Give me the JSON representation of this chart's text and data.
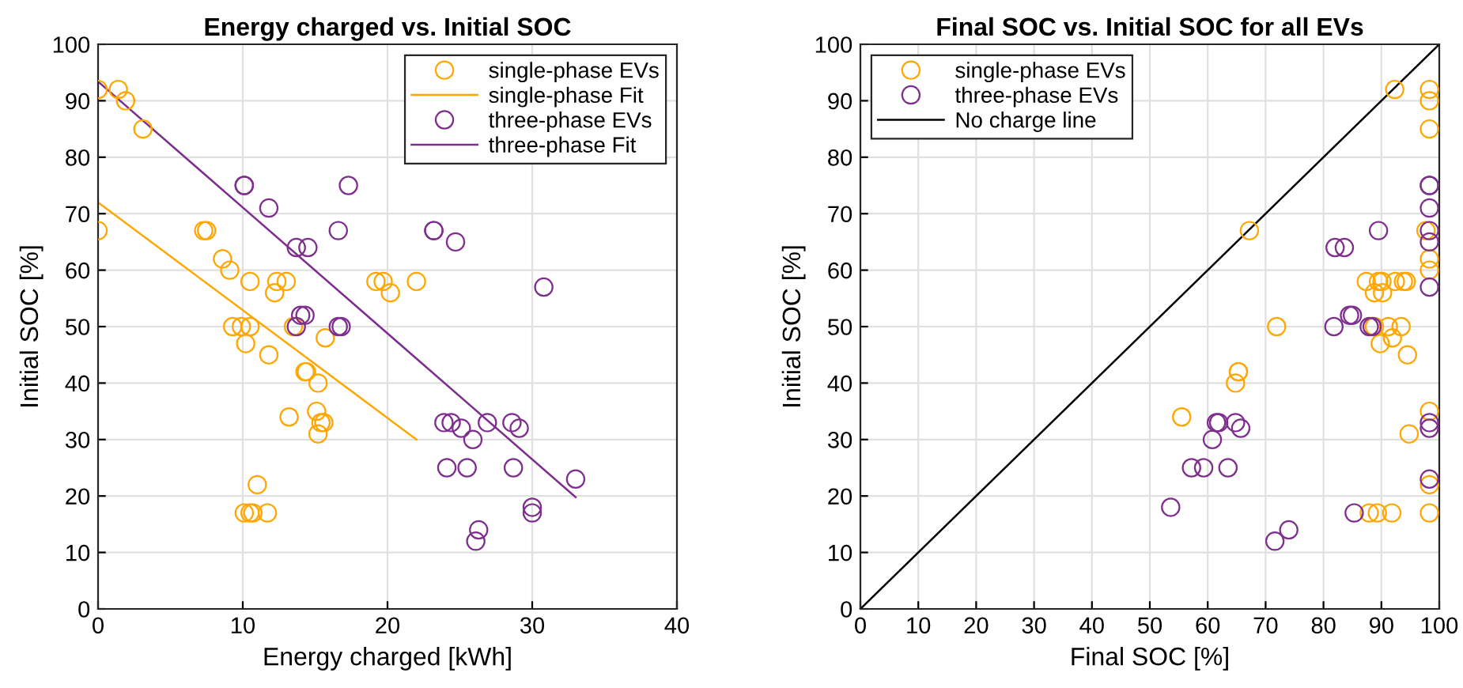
{
  "chart_data": [
    {
      "type": "scatter",
      "title": "Energy charged vs. Initial SOC",
      "xlabel": "Energy charged [kWh]",
      "ylabel": "Initial SOC [%]",
      "xlim": [
        0,
        40
      ],
      "ylim": [
        0,
        100
      ],
      "xticks": [
        0,
        10,
        20,
        30,
        40
      ],
      "yticks": [
        0,
        10,
        20,
        30,
        40,
        50,
        60,
        70,
        80,
        90,
        100
      ],
      "grid": true,
      "legend": "top right",
      "series": [
        {
          "name": "single-phase EVs",
          "marker": "circle",
          "color": "#ffa600",
          "x": [
            0,
            1.4,
            1.9,
            3.1,
            0,
            7.3,
            7.5,
            8.6,
            9.1,
            10.5,
            12.35,
            13.0,
            12.2,
            9.3,
            9.9,
            10.5,
            10.2,
            11.8,
            13.5,
            15.7,
            14.3,
            14.4,
            15.2,
            13.2,
            15.1,
            15.6,
            15.4,
            15.2,
            11.0,
            10.1,
            10.5,
            10.7,
            11.7,
            19.2,
            19.7,
            20.2,
            22.0
          ],
          "values": [
            92,
            92,
            90,
            85,
            67,
            67,
            67,
            62,
            60,
            58,
            58,
            58,
            56,
            50,
            50,
            50,
            47,
            45,
            50,
            48,
            42,
            42,
            40,
            34,
            35,
            33,
            33,
            31,
            22,
            17,
            17,
            17,
            17,
            58,
            58,
            56,
            58
          ]
        },
        {
          "name": "single-phase Fit",
          "type": "line",
          "color": "#ffa600",
          "x": [
            0,
            22
          ],
          "values": [
            72,
            30
          ]
        },
        {
          "name": "three-phase EVs",
          "marker": "circle",
          "color": "#7e2f8e",
          "x": [
            10.1,
            10.1,
            11.8,
            13.7,
            14.5,
            14.3,
            14.0,
            13.7,
            16.6,
            16.8,
            16.6,
            17.3,
            23.2,
            23.2,
            24.7,
            30.8,
            23.9,
            24.4,
            25.1,
            25.9,
            26.9,
            28.6,
            29.1,
            24.1,
            25.5,
            28.7,
            33.0,
            30.0,
            30.0,
            26.3,
            26.1
          ],
          "values": [
            75,
            75,
            71,
            64,
            64,
            52,
            52,
            50,
            50,
            50,
            67,
            75,
            67,
            67,
            65,
            57,
            33,
            33,
            32,
            30,
            33,
            33,
            32,
            25,
            25,
            25,
            23,
            18,
            17,
            14,
            12
          ]
        },
        {
          "name": "three-phase Fit",
          "type": "line",
          "color": "#7e2f8e",
          "x": [
            0,
            33
          ],
          "values": [
            93.4,
            19.8
          ]
        }
      ]
    },
    {
      "type": "scatter",
      "title": "Final SOC vs. Initial SOC for all EVs",
      "xlabel": "Final SOC [%]",
      "ylabel": "Initial SOC [%]",
      "xlim": [
        0,
        100
      ],
      "ylim": [
        0,
        100
      ],
      "xticks": [
        0,
        10,
        20,
        30,
        40,
        50,
        60,
        70,
        80,
        90,
        100
      ],
      "yticks": [
        0,
        10,
        20,
        30,
        40,
        50,
        60,
        70,
        80,
        90,
        100
      ],
      "grid": true,
      "legend": "top left",
      "series": [
        {
          "name": "single-phase EVs",
          "marker": "circle",
          "color": "#ffa600",
          "x": [
            92.3,
            98.3,
            98.3,
            98.3,
            67.2,
            97.7,
            98.3,
            98.3,
            87.4,
            89.5,
            90.1,
            92.4,
            93.8,
            94.3,
            88.8,
            90.2,
            71.9,
            88.8,
            91.2,
            93.4,
            89.8,
            91.9,
            94.5,
            65.3,
            65.3,
            64.8,
            55.5,
            94.8,
            98.3,
            98.3,
            87.9,
            89.3,
            91.8,
            98.3
          ],
          "values": [
            92,
            92,
            90,
            85,
            67,
            67,
            62,
            60,
            58,
            58,
            58,
            58,
            58,
            58,
            56,
            56,
            50,
            50,
            50,
            50,
            47,
            48,
            45,
            42,
            42,
            40,
            34,
            31,
            35,
            22,
            17,
            17,
            17,
            17
          ]
        },
        {
          "name": "three-phase EVs",
          "marker": "circle",
          "color": "#7e2f8e",
          "x": [
            98.3,
            98.3,
            98.3,
            89.5,
            98.3,
            98.3,
            82.0,
            83.6,
            84.5,
            85.0,
            81.8,
            87.9,
            88.4,
            98.3,
            61.5,
            61.9,
            64.8,
            65.7,
            60.8,
            98.3,
            98.3,
            57.2,
            59.3,
            63.5,
            98.3,
            53.6,
            85.3,
            74.0,
            71.6
          ],
          "values": [
            75,
            75,
            71,
            67,
            67,
            65,
            64,
            64,
            52,
            52,
            50,
            50,
            50,
            57,
            33,
            33,
            33,
            32,
            30,
            33,
            32,
            25,
            25,
            25,
            23,
            18,
            17,
            14,
            12
          ]
        },
        {
          "name": "No charge line",
          "type": "line",
          "color": "#000000",
          "x": [
            0,
            100
          ],
          "values": [
            0,
            100
          ]
        }
      ]
    }
  ]
}
